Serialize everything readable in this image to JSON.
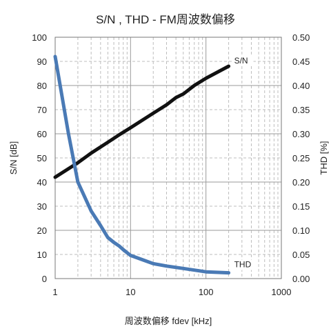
{
  "chart_data": {
    "type": "line",
    "title": "S/N , THD - FM周波数偏移",
    "xlabel": "周波数偏移 fdev [kHz]",
    "ylabel_left": "S/N [dB]",
    "ylabel_right": "THD [%]",
    "x_scale": "log",
    "xlim": [
      1,
      1000
    ],
    "ylim_left": [
      0,
      100
    ],
    "ylim_right": [
      0,
      0.5
    ],
    "x_ticks": [
      1,
      10,
      100,
      1000
    ],
    "x_tick_labels": [
      "1",
      "10",
      "100",
      "1000"
    ],
    "y_left_ticks": [
      0,
      10,
      20,
      30,
      40,
      50,
      60,
      70,
      80,
      90,
      100
    ],
    "y_left_tick_labels": [
      "0",
      "10",
      "20",
      "30",
      "40",
      "50",
      "60",
      "70",
      "80",
      "90",
      "100"
    ],
    "y_right_ticks": [
      0,
      0.05,
      0.1,
      0.15,
      0.2,
      0.25,
      0.3,
      0.35,
      0.4,
      0.45,
      0.5
    ],
    "y_right_tick_labels": [
      "0.00",
      "0.05",
      "0.10",
      "0.15",
      "0.20",
      "0.25",
      "0.30",
      "0.35",
      "0.40",
      "0.45",
      "0.50"
    ],
    "grid": true,
    "series": [
      {
        "name": "S/N",
        "axis": "left",
        "color": "#111111",
        "x": [
          1,
          2,
          3,
          5,
          7,
          10,
          20,
          30,
          40,
          50,
          70,
          100,
          200
        ],
        "y": [
          42,
          48,
          52,
          56.5,
          59.5,
          62.5,
          68.5,
          72,
          75,
          76.5,
          80,
          83,
          88
        ]
      },
      {
        "name": "THD",
        "axis": "right",
        "color": "#4a7ab5",
        "x": [
          1,
          1.5,
          2,
          3,
          4,
          5,
          6,
          7,
          8,
          10,
          15,
          20,
          30,
          50,
          100,
          200
        ],
        "y": [
          0.46,
          0.3,
          0.2,
          0.14,
          0.11,
          0.085,
          0.075,
          0.068,
          0.06,
          0.048,
          0.038,
          0.031,
          0.026,
          0.021,
          0.014,
          0.012
        ]
      }
    ]
  }
}
